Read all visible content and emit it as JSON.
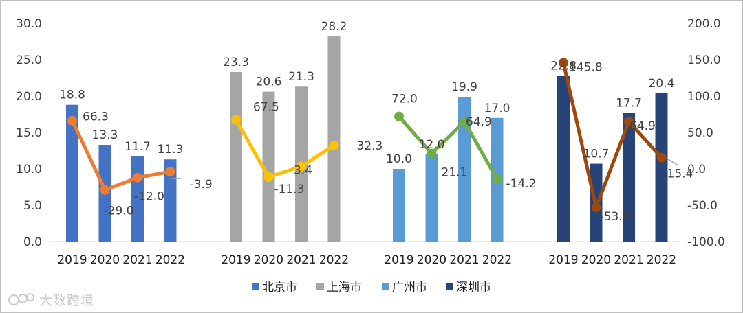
{
  "chart_data": {
    "type": "bar",
    "categories": [
      "2019",
      "2020",
      "2021",
      "2022"
    ],
    "left_axis": {
      "min": 0,
      "max": 30,
      "step": 5,
      "ticks": [
        "0.0",
        "5.0",
        "10.0",
        "15.0",
        "20.0",
        "25.0",
        "30.0"
      ]
    },
    "right_axis": {
      "min": -100,
      "max": 200,
      "step": 50,
      "ticks": [
        "-100.0",
        "-50.0",
        "0.0",
        "50.0",
        "100.0",
        "150.0",
        "200.0"
      ]
    },
    "legend_position": "bottom",
    "grid": false,
    "groups": [
      {
        "name": "北京市",
        "bar_color": "#4472c4",
        "line_color": "#ed7d31",
        "bar_values": [
          18.8,
          13.3,
          11.7,
          11.3
        ],
        "bar_labels": [
          "18.8",
          "13.3",
          "11.7",
          "11.3"
        ],
        "line_values": [
          66.3,
          -29.0,
          -12.0,
          -3.9
        ],
        "line_labels": [
          "66.3",
          "-29.0",
          "-12.0",
          "-3.9"
        ]
      },
      {
        "name": "上海市",
        "bar_color": "#a5a5a5",
        "line_color": "#ffc000",
        "bar_values": [
          23.3,
          20.6,
          21.3,
          28.2
        ],
        "bar_labels": [
          "23.3",
          "20.6",
          "21.3",
          "28.2"
        ],
        "line_values": [
          67.5,
          -11.3,
          3.4,
          32.3
        ],
        "line_labels": [
          "67.5",
          "-11.3",
          "3.4",
          "32.3"
        ]
      },
      {
        "name": "广州市",
        "bar_color": "#5b9bd5",
        "line_color": "#70ad47",
        "bar_values": [
          10.0,
          12.0,
          19.9,
          17.0
        ],
        "bar_labels": [
          "10.0",
          "12.0",
          "19.9",
          "17.0"
        ],
        "line_values": [
          72.0,
          21.1,
          64.9,
          -14.2
        ],
        "line_labels": [
          "72.0",
          "21.1",
          "64.9",
          "-14.2"
        ]
      },
      {
        "name": "深圳市",
        "bar_color": "#264478",
        "line_color": "#9e480e",
        "bar_values": [
          22.8,
          10.7,
          17.7,
          20.4
        ],
        "bar_labels": [
          "22.8",
          "10.7",
          "17.7",
          "20.4"
        ],
        "line_values": [
          145.8,
          -53.0,
          64.9,
          15.4
        ],
        "line_labels": [
          "145.8",
          "-53.0",
          "64.9",
          "15.4"
        ]
      }
    ]
  },
  "watermark": {
    "text": "大数跨境"
  }
}
